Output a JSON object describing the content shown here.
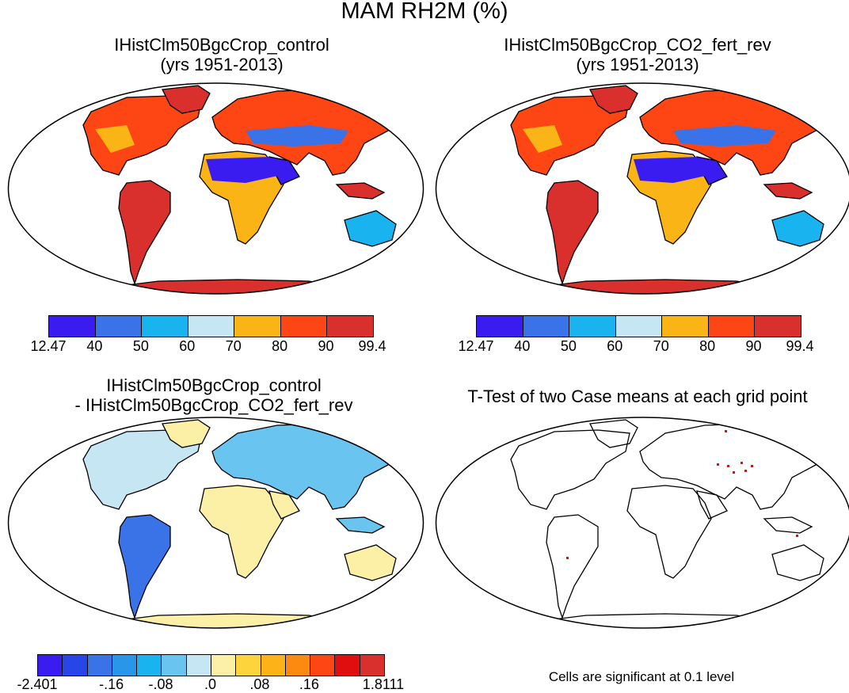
{
  "figure": {
    "title": "MAM RH2M (%)"
  },
  "panels": [
    {
      "title_line1": "IHistClm50BgcCrop_control",
      "title_line2": "(yrs 1951-2013)"
    },
    {
      "title_line1": "IHistClm50BgcCrop_CO2_fert_rev",
      "title_line2": "(yrs 1951-2013)"
    },
    {
      "title_line1": "IHistClm50BgcCrop_control",
      "title_line2": "- IHistClm50BgcCrop_CO2_fert_rev"
    },
    {
      "title_line1": "T-Test of two Case means at each grid point",
      "note": "Cells are significant at 0.1 level"
    }
  ],
  "colorbar_abs": {
    "colors": [
      "#3a1cf0",
      "#3a72e8",
      "#19b4f0",
      "#c6e6f4",
      "#fbb416",
      "#fd4614",
      "#d9302e"
    ],
    "labels": [
      "12.47",
      "40",
      "50",
      "60",
      "70",
      "80",
      "90",
      "99.4"
    ]
  },
  "colorbar_diff": {
    "colors": [
      "#3a1cf0",
      "#2846e8",
      "#3a72e8",
      "#2a96ea",
      "#19b4f0",
      "#6ac4f0",
      "#c6e6f4",
      "#fcefa6",
      "#fed43c",
      "#fdb218",
      "#fd8a10",
      "#fd4614",
      "#e00e0e",
      "#d9302e"
    ],
    "labels": [
      "-2.401",
      "-.16",
      "-.08",
      ".0",
      ".08",
      ".16",
      "1.8111"
    ]
  }
}
